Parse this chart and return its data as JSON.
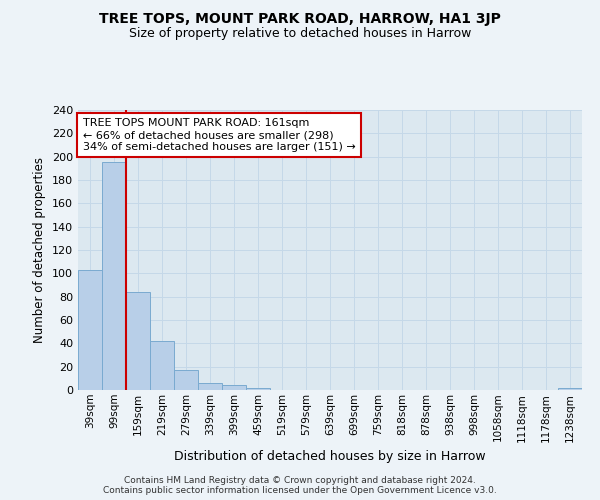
{
  "title": "TREE TOPS, MOUNT PARK ROAD, HARROW, HA1 3JP",
  "subtitle": "Size of property relative to detached houses in Harrow",
  "xlabel": "Distribution of detached houses by size in Harrow",
  "ylabel": "Number of detached properties",
  "categories": [
    "39sqm",
    "99sqm",
    "159sqm",
    "219sqm",
    "279sqm",
    "339sqm",
    "399sqm",
    "459sqm",
    "519sqm",
    "579sqm",
    "639sqm",
    "699sqm",
    "759sqm",
    "818sqm",
    "878sqm",
    "938sqm",
    "998sqm",
    "1058sqm",
    "1118sqm",
    "1178sqm",
    "1238sqm"
  ],
  "values": [
    103,
    195,
    84,
    42,
    17,
    6,
    4,
    2,
    0,
    0,
    0,
    0,
    0,
    0,
    0,
    0,
    0,
    0,
    0,
    0,
    2
  ],
  "bar_color": "#b8cfe8",
  "bar_edge_color": "#7aaad0",
  "grid_color": "#c5d8e8",
  "property_line_idx": 2,
  "property_line_color": "#cc0000",
  "annotation_text": "TREE TOPS MOUNT PARK ROAD: 161sqm\n← 66% of detached houses are smaller (298)\n34% of semi-detached houses are larger (151) →",
  "annotation_box_color": "#ffffff",
  "annotation_box_edge_color": "#cc0000",
  "ylim": [
    0,
    240
  ],
  "yticks": [
    0,
    20,
    40,
    60,
    80,
    100,
    120,
    140,
    160,
    180,
    200,
    220,
    240
  ],
  "footer": "Contains HM Land Registry data © Crown copyright and database right 2024.\nContains public sector information licensed under the Open Government Licence v3.0.",
  "bg_color": "#dce8f0",
  "fig_bg_color": "#edf3f8"
}
